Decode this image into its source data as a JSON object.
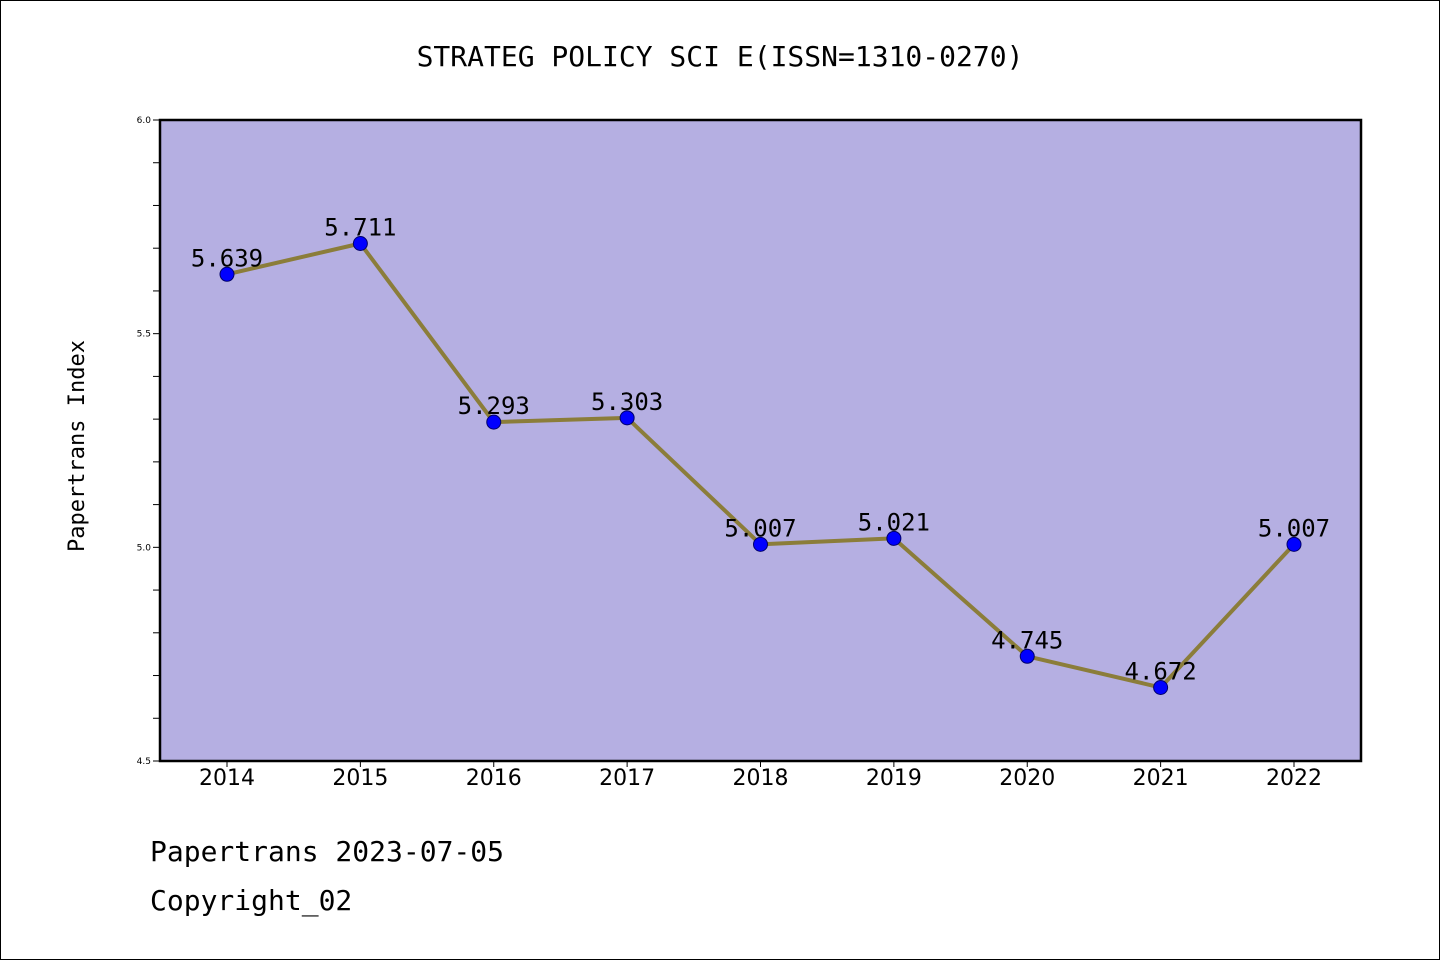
{
  "chart_data": {
    "type": "line",
    "title": "STRATEG POLICY SCI E(ISSN=1310-0270)",
    "ylabel": "Papertrans Index",
    "xlabel": "",
    "categories": [
      "2014",
      "2015",
      "2016",
      "2017",
      "2018",
      "2019",
      "2020",
      "2021",
      "2022"
    ],
    "series": [
      {
        "values": [
          5.639,
          5.711,
          5.293,
          5.303,
          5.007,
          5.021,
          4.745,
          4.672,
          5.007
        ],
        "labels": [
          "5.639",
          "5.711",
          "5.293",
          "5.303",
          "5.007",
          "5.021",
          "4.745",
          "4.672",
          "5.007"
        ]
      }
    ],
    "ylim": [
      4.5,
      6.0
    ],
    "yticks": [
      "4.5",
      "5.0",
      "5.5",
      "6.0"
    ],
    "grid": false,
    "colors": {
      "plot_background": "#b5afe2",
      "line": "#8b7d3a",
      "marker": "#0000ff"
    }
  },
  "footer": {
    "source": "Papertrans 2023-07-05",
    "copyright": "Copyright_02"
  }
}
